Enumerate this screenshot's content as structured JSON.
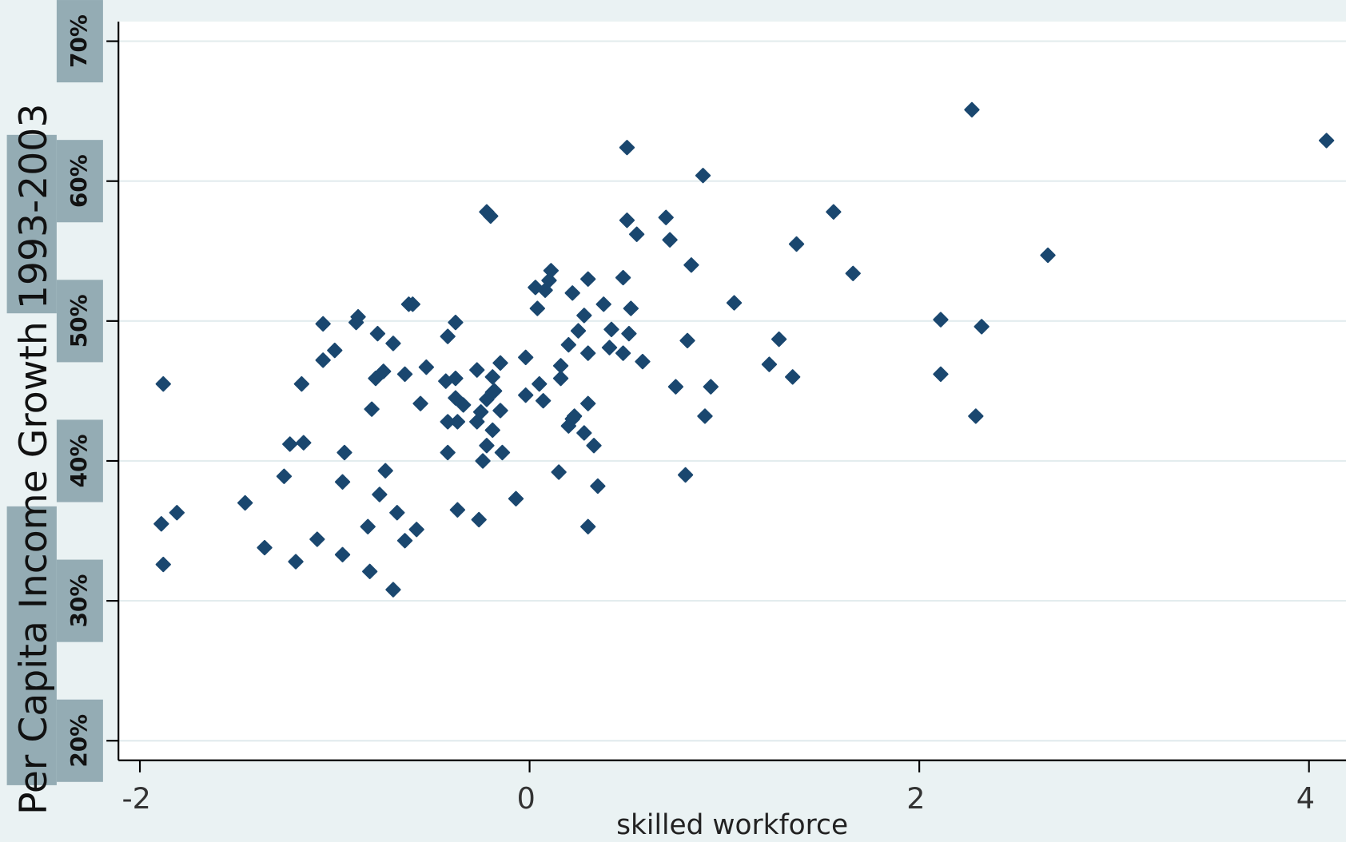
{
  "chart_data": {
    "type": "scatter",
    "x_label": "skilled workforce",
    "y_label": "Per Capita Income Growth 1993-2003",
    "color": "#1a476f",
    "grid": true,
    "xlim": [
      -2.11,
      4.19
    ],
    "ylim": [
      18.6,
      71.4
    ],
    "xticks": [
      -2,
      0,
      2,
      4
    ],
    "yticks": [
      {
        "value": 20,
        "label": "20%"
      },
      {
        "value": 30,
        "label": "30%"
      },
      {
        "value": 40,
        "label": "40%"
      },
      {
        "value": 50,
        "label": "50%"
      },
      {
        "value": 60,
        "label": "60%"
      },
      {
        "value": 70,
        "label": "70%"
      }
    ],
    "x": [
      -1.88,
      -1.89,
      -1.88,
      -1.81,
      -1.46,
      -1.36,
      -1.26,
      -1.2,
      -1.23,
      -1.16,
      -1.17,
      -1.09,
      -1.06,
      -1.06,
      -1.0,
      -0.96,
      -0.96,
      -0.95,
      -0.89,
      -0.88,
      -0.83,
      -0.82,
      -0.81,
      -0.79,
      -0.78,
      -0.77,
      -0.75,
      -0.74,
      -0.7,
      -0.7,
      -0.68,
      -0.64,
      -0.64,
      -0.62,
      -0.6,
      -0.58,
      -0.56,
      -0.53,
      -0.43,
      -0.42,
      -0.42,
      -0.42,
      -0.38,
      -0.38,
      -0.38,
      -0.37,
      -0.37,
      -0.34,
      -0.27,
      -0.27,
      -0.26,
      -0.25,
      -0.24,
      -0.22,
      -0.22,
      -0.22,
      -0.2,
      -0.19,
      -0.19,
      -0.19,
      -0.18,
      -0.15,
      -0.15,
      -0.14,
      -0.07,
      -0.02,
      -0.02,
      0.03,
      0.04,
      0.05,
      0.07,
      0.08,
      0.1,
      0.11,
      0.15,
      0.16,
      0.16,
      0.2,
      0.2,
      0.22,
      0.22,
      0.23,
      0.25,
      0.28,
      0.28,
      0.3,
      0.3,
      0.3,
      0.3,
      0.33,
      0.35,
      0.38,
      0.41,
      0.42,
      0.48,
      0.48,
      0.5,
      0.5,
      0.51,
      0.52,
      0.55,
      0.58,
      0.7,
      0.72,
      0.75,
      0.8,
      0.81,
      0.83,
      0.89,
      0.9,
      0.93,
      1.05,
      1.23,
      1.28,
      1.35,
      1.37,
      1.56,
      1.66,
      2.11,
      2.11,
      2.27,
      2.29,
      2.32,
      2.66,
      4.09
    ],
    "values": [
      45.5,
      35.5,
      32.6,
      36.3,
      37.0,
      33.8,
      38.9,
      32.8,
      41.2,
      41.3,
      45.5,
      34.4,
      49.8,
      47.2,
      47.9,
      38.5,
      33.3,
      40.6,
      49.9,
      50.3,
      35.3,
      32.1,
      43.7,
      45.9,
      49.1,
      37.6,
      46.4,
      39.3,
      48.4,
      30.8,
      36.3,
      34.3,
      46.2,
      51.2,
      51.2,
      35.1,
      44.1,
      46.7,
      45.7,
      48.9,
      42.8,
      40.6,
      49.9,
      45.9,
      44.5,
      36.5,
      42.8,
      44.0,
      46.5,
      42.8,
      35.8,
      43.5,
      40.0,
      44.4,
      41.1,
      57.8,
      57.5,
      46.0,
      44.9,
      42.2,
      45.0,
      47.0,
      43.6,
      40.6,
      37.3,
      44.7,
      47.4,
      52.4,
      50.9,
      45.5,
      44.3,
      52.2,
      52.9,
      53.6,
      39.2,
      45.9,
      46.8,
      48.3,
      42.5,
      52.0,
      43.0,
      43.2,
      49.3,
      50.4,
      42.0,
      47.7,
      35.3,
      53.0,
      44.1,
      41.1,
      38.2,
      51.2,
      48.1,
      49.4,
      53.1,
      47.7,
      62.4,
      57.2,
      49.1,
      50.9,
      56.2,
      47.1,
      57.4,
      55.8,
      45.3,
      39.0,
      48.6,
      54.0,
      60.4,
      43.2,
      45.3,
      51.3,
      46.9,
      48.7,
      46.0,
      55.5,
      57.8,
      53.4,
      50.1,
      46.2,
      65.1,
      43.2,
      49.6,
      54.7,
      62.9
    ]
  }
}
